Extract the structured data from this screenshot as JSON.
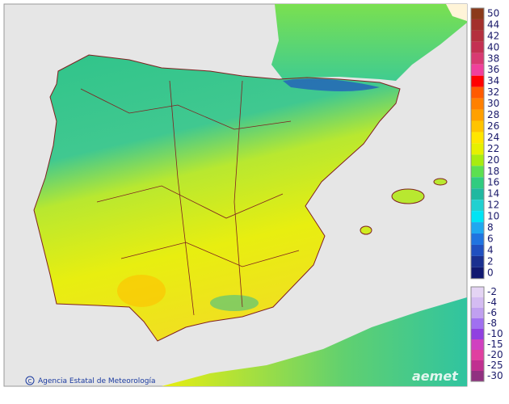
{
  "legend": {
    "items": [
      {
        "label": "50",
        "color": "#8b3a1a"
      },
      {
        "label": "44",
        "color": "#a3302c"
      },
      {
        "label": "42",
        "color": "#b4303e"
      },
      {
        "label": "40",
        "color": "#c43052"
      },
      {
        "label": "38",
        "color": "#d83a72"
      },
      {
        "label": "36",
        "color": "#f0409c"
      },
      {
        "label": "34",
        "color": "#ff0000"
      },
      {
        "label": "32",
        "color": "#ff5a00"
      },
      {
        "label": "30",
        "color": "#ff8000"
      },
      {
        "label": "28",
        "color": "#ffa000"
      },
      {
        "label": "26",
        "color": "#ffc400"
      },
      {
        "label": "24",
        "color": "#ffe600"
      },
      {
        "label": "22",
        "color": "#e6f000"
      },
      {
        "label": "20",
        "color": "#a8ec10"
      },
      {
        "label": "18",
        "color": "#5ce050"
      },
      {
        "label": "16",
        "color": "#30cc80"
      },
      {
        "label": "14",
        "color": "#20b8a0"
      },
      {
        "label": "12",
        "color": "#20d0d0"
      },
      {
        "label": "10",
        "color": "#00e4f4"
      },
      {
        "label": "8",
        "color": "#20a8f0"
      },
      {
        "label": "6",
        "color": "#2074e0"
      },
      {
        "label": "4",
        "color": "#2050c0"
      },
      {
        "label": "2",
        "color": "#1a3090"
      },
      {
        "label": "0",
        "color": "#101870"
      },
      {
        "label": "-2",
        "color": "#e4d4f4"
      },
      {
        "label": "-4",
        "color": "#d4bcf2"
      },
      {
        "label": "-6",
        "color": "#c0a0f0"
      },
      {
        "label": "-8",
        "color": "#a070f0"
      },
      {
        "label": "-10",
        "color": "#9040e0"
      },
      {
        "label": "-15",
        "color": "#d040c0"
      },
      {
        "label": "-20",
        "color": "#e040a0"
      },
      {
        "label": "-25",
        "color": "#c03090"
      },
      {
        "label": "-30",
        "color": "#903080"
      }
    ]
  },
  "credit": {
    "text": "Agencia Estatal de Meteorología"
  },
  "logo": {
    "text": "aemet"
  }
}
